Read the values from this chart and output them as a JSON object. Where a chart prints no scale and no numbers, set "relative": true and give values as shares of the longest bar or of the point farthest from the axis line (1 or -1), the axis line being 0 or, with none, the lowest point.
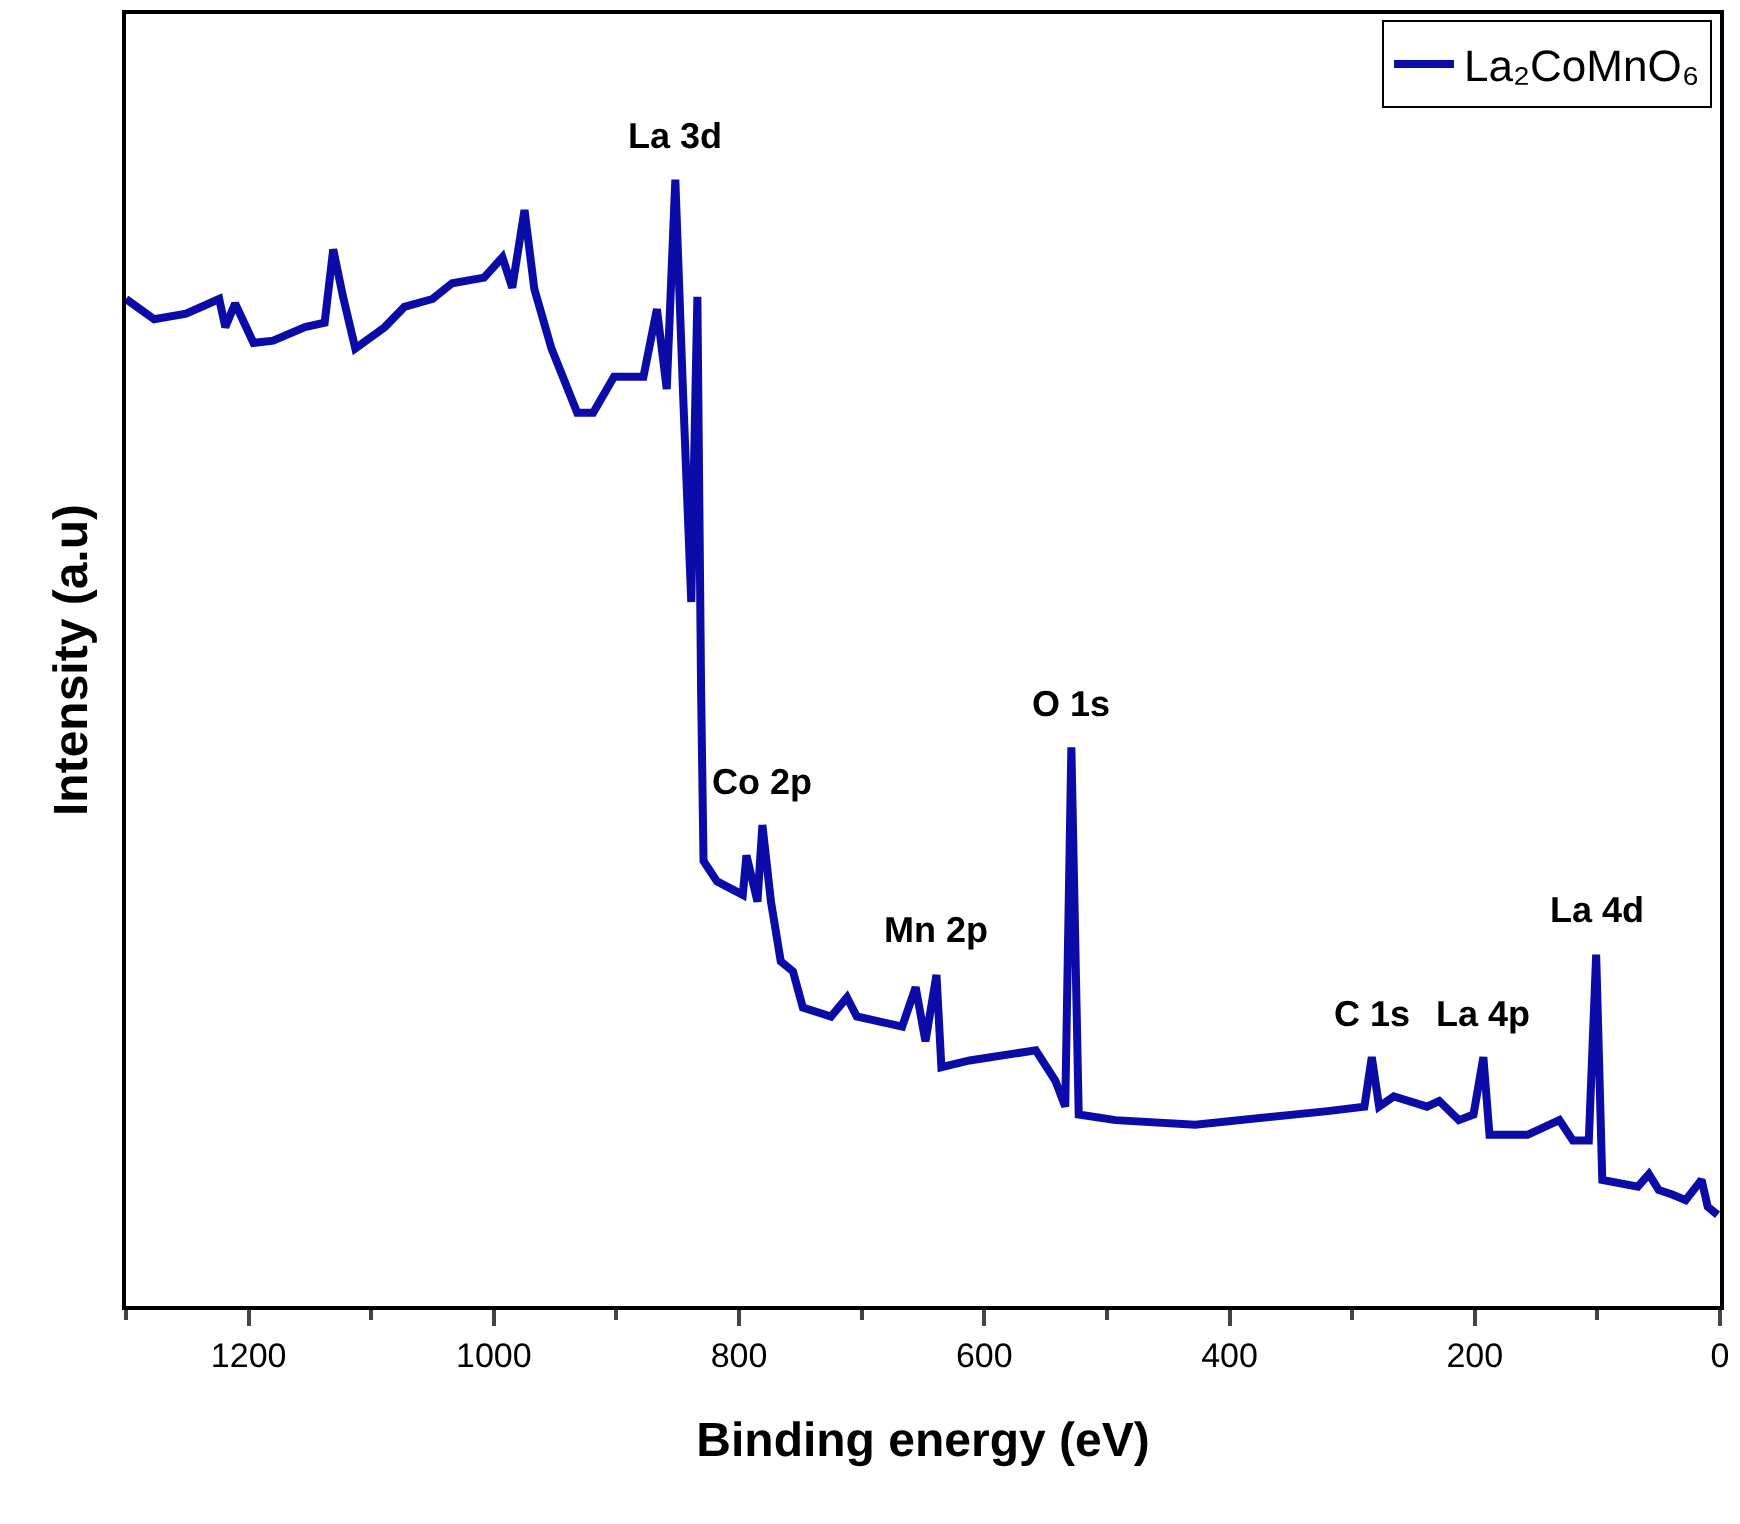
{
  "chart_data": {
    "type": "line",
    "xlabel": "Binding energy (eV)",
    "ylabel": "Intensity (a.u)",
    "relative": true,
    "xlim": [
      1300,
      0
    ],
    "xticks": [
      1200,
      1000,
      800,
      600,
      400,
      200,
      0
    ],
    "legend": "top right",
    "marker": "none",
    "line_style": "solid",
    "series": [
      {
        "name": "La₂CoMnO₆",
        "color": "#0b0ba8",
        "x": [
          1300,
          1277,
          1251,
          1224,
          1219,
          1211,
          1196,
          1180,
          1154,
          1138,
          1131,
          1123,
          1113,
          1089,
          1073,
          1050,
          1034,
          1008,
          993,
          985,
          975,
          967,
          953,
          932,
          919,
          902,
          878,
          867,
          859,
          852,
          846,
          839,
          834,
          831,
          829,
          818,
          797,
          794,
          785,
          781,
          774,
          766,
          756,
          748,
          725,
          712,
          704,
          667,
          656,
          648,
          639,
          635,
          612,
          558,
          542,
          534,
          529,
          523,
          493,
          428,
          320,
          290,
          284,
          278,
          266,
          239,
          229,
          213,
          201,
          193,
          188,
          157,
          131,
          120,
          107,
          101,
          96,
          67,
          58,
          50,
          39,
          28,
          15,
          10,
          2
        ],
        "values": [
          0.894,
          0.876,
          0.881,
          0.894,
          0.869,
          0.89,
          0.855,
          0.857,
          0.869,
          0.873,
          0.938,
          0.896,
          0.85,
          0.869,
          0.887,
          0.894,
          0.908,
          0.913,
          0.931,
          0.904,
          0.973,
          0.903,
          0.85,
          0.793,
          0.793,
          0.825,
          0.825,
          0.885,
          0.814,
          1.0,
          0.819,
          0.625,
          0.896,
          0.549,
          0.395,
          0.377,
          0.365,
          0.4,
          0.359,
          0.427,
          0.359,
          0.306,
          0.297,
          0.265,
          0.257,
          0.274,
          0.257,
          0.248,
          0.283,
          0.235,
          0.294,
          0.212,
          0.218,
          0.227,
          0.2,
          0.177,
          0.496,
          0.17,
          0.165,
          0.161,
          0.173,
          0.177,
          0.221,
          0.177,
          0.186,
          0.177,
          0.182,
          0.165,
          0.17,
          0.221,
          0.152,
          0.152,
          0.165,
          0.147,
          0.147,
          0.312,
          0.112,
          0.106,
          0.117,
          0.103,
          0.099,
          0.094,
          0.112,
          0.088,
          0.081
        ]
      }
    ],
    "annotations": [
      {
        "text": "La 3d",
        "x": 852,
        "y": 1.0
      },
      {
        "text": "Co 2p",
        "x": 781,
        "y": 0.427
      },
      {
        "text": "Mn 2p",
        "x": 639,
        "y": 0.294
      },
      {
        "text": "O 1s",
        "x": 529,
        "y": 0.496
      },
      {
        "text": "C 1s",
        "x": 284,
        "y": 0.221
      },
      {
        "text": "La 4p",
        "x": 193,
        "y": 0.221
      },
      {
        "text": "La 4d",
        "x": 101,
        "y": 0.312
      }
    ]
  }
}
